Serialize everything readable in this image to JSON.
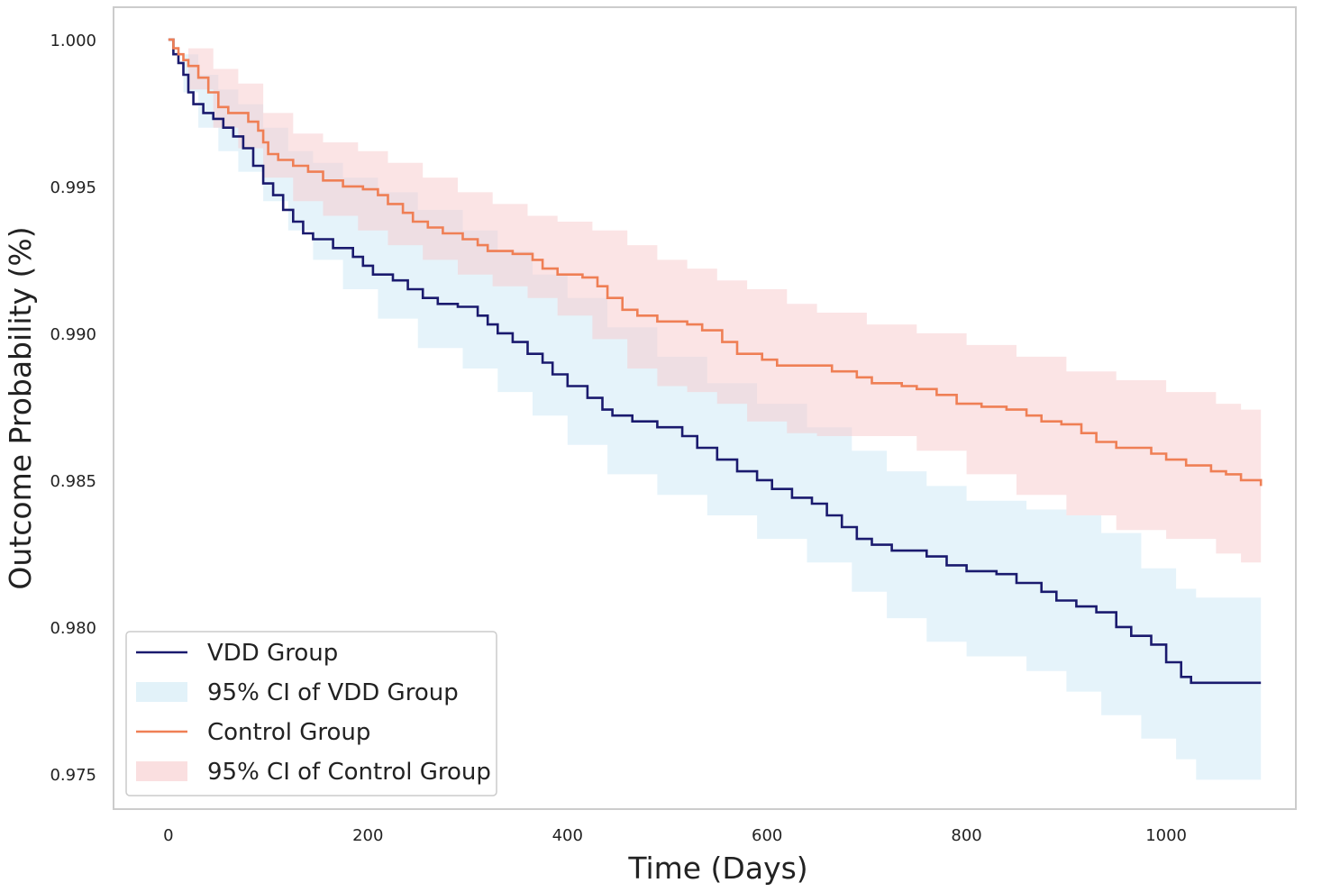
{
  "chart_data": {
    "type": "line",
    "title": "",
    "xlabel": "Time (Days)",
    "ylabel": "Outcome Probability (%)",
    "xlim": [
      -55,
      1130
    ],
    "ylim": [
      0.9738,
      1.0011
    ],
    "xticks": [
      0,
      200,
      400,
      600,
      800,
      1000
    ],
    "xtick_labels": [
      "0",
      "200",
      "400",
      "600",
      "800",
      "1000"
    ],
    "yticks": [
      1.0,
      0.995,
      0.99,
      0.985,
      0.98,
      0.975
    ],
    "ytick_labels": [
      "1.000",
      "0.995",
      "0.990",
      "0.985",
      "0.980",
      "0.975"
    ],
    "grid": false,
    "legend_location": "lower-left",
    "legend": [
      {
        "label": "VDD Group",
        "kind": "line",
        "color": "#1a1a6e"
      },
      {
        "label": "95% CI of VDD Group",
        "kind": "band",
        "color": "#cfe9f5"
      },
      {
        "label": "Control Group",
        "kind": "line",
        "color": "#ef7f55"
      },
      {
        "label": "95% CI of Control Group",
        "kind": "band",
        "color": "#f7c9cb"
      }
    ],
    "series": [
      {
        "name": "VDD Group",
        "color": "#1a1a6e",
        "ci_color": "#cfe9f5",
        "step": true,
        "points": [
          [
            0,
            1.0
          ],
          [
            5,
            0.9995
          ],
          [
            10,
            0.9992
          ],
          [
            15,
            0.9988
          ],
          [
            20,
            0.9982
          ],
          [
            25,
            0.9978
          ],
          [
            35,
            0.9975
          ],
          [
            45,
            0.9973
          ],
          [
            55,
            0.997
          ],
          [
            65,
            0.9967
          ],
          [
            75,
            0.9963
          ],
          [
            85,
            0.9957
          ],
          [
            95,
            0.9951
          ],
          [
            105,
            0.9947
          ],
          [
            115,
            0.9942
          ],
          [
            125,
            0.9938
          ],
          [
            135,
            0.9934
          ],
          [
            145,
            0.9932
          ],
          [
            165,
            0.9929
          ],
          [
            185,
            0.9926
          ],
          [
            195,
            0.9923
          ],
          [
            205,
            0.992
          ],
          [
            225,
            0.9918
          ],
          [
            240,
            0.9915
          ],
          [
            255,
            0.9912
          ],
          [
            270,
            0.991
          ],
          [
            290,
            0.9909
          ],
          [
            310,
            0.9906
          ],
          [
            320,
            0.9903
          ],
          [
            330,
            0.99
          ],
          [
            345,
            0.9897
          ],
          [
            360,
            0.9893
          ],
          [
            375,
            0.989
          ],
          [
            385,
            0.9886
          ],
          [
            400,
            0.9882
          ],
          [
            420,
            0.9878
          ],
          [
            435,
            0.9874
          ],
          [
            445,
            0.9872
          ],
          [
            465,
            0.987
          ],
          [
            490,
            0.9868
          ],
          [
            515,
            0.9865
          ],
          [
            530,
            0.9861
          ],
          [
            550,
            0.9857
          ],
          [
            570,
            0.9853
          ],
          [
            590,
            0.985
          ],
          [
            605,
            0.9847
          ],
          [
            625,
            0.9844
          ],
          [
            645,
            0.9842
          ],
          [
            660,
            0.9838
          ],
          [
            675,
            0.9834
          ],
          [
            690,
            0.983
          ],
          [
            705,
            0.9828
          ],
          [
            725,
            0.9826
          ],
          [
            760,
            0.9824
          ],
          [
            780,
            0.9821
          ],
          [
            800,
            0.9819
          ],
          [
            830,
            0.9818
          ],
          [
            850,
            0.9815
          ],
          [
            875,
            0.9812
          ],
          [
            890,
            0.9809
          ],
          [
            910,
            0.9807
          ],
          [
            930,
            0.9805
          ],
          [
            950,
            0.98
          ],
          [
            965,
            0.9797
          ],
          [
            985,
            0.9794
          ],
          [
            1000,
            0.9788
          ],
          [
            1015,
            0.9783
          ],
          [
            1025,
            0.9781
          ],
          [
            1095,
            0.9781
          ]
        ],
        "ci_lower": [
          [
            0,
            1.0
          ],
          [
            15,
            0.9982
          ],
          [
            30,
            0.997
          ],
          [
            50,
            0.9962
          ],
          [
            70,
            0.9955
          ],
          [
            95,
            0.9945
          ],
          [
            120,
            0.9935
          ],
          [
            145,
            0.9925
          ],
          [
            175,
            0.9915
          ],
          [
            210,
            0.9905
          ],
          [
            250,
            0.9895
          ],
          [
            295,
            0.9888
          ],
          [
            330,
            0.988
          ],
          [
            365,
            0.9872
          ],
          [
            400,
            0.9862
          ],
          [
            440,
            0.9852
          ],
          [
            490,
            0.9845
          ],
          [
            540,
            0.9838
          ],
          [
            590,
            0.983
          ],
          [
            640,
            0.9822
          ],
          [
            685,
            0.9812
          ],
          [
            720,
            0.9803
          ],
          [
            760,
            0.9795
          ],
          [
            800,
            0.979
          ],
          [
            860,
            0.9785
          ],
          [
            900,
            0.9778
          ],
          [
            935,
            0.977
          ],
          [
            975,
            0.9762
          ],
          [
            1010,
            0.9755
          ],
          [
            1030,
            0.9748
          ],
          [
            1095,
            0.9748
          ]
        ],
        "ci_upper": [
          [
            0,
            1.0
          ],
          [
            15,
            0.9995
          ],
          [
            30,
            0.9988
          ],
          [
            50,
            0.9983
          ],
          [
            70,
            0.9978
          ],
          [
            95,
            0.997
          ],
          [
            120,
            0.9962
          ],
          [
            145,
            0.9958
          ],
          [
            175,
            0.9953
          ],
          [
            210,
            0.9948
          ],
          [
            250,
            0.9942
          ],
          [
            295,
            0.9935
          ],
          [
            330,
            0.9928
          ],
          [
            365,
            0.992
          ],
          [
            400,
            0.9912
          ],
          [
            440,
            0.9902
          ],
          [
            490,
            0.9892
          ],
          [
            540,
            0.9883
          ],
          [
            590,
            0.9876
          ],
          [
            640,
            0.9868
          ],
          [
            685,
            0.986
          ],
          [
            720,
            0.9853
          ],
          [
            760,
            0.9848
          ],
          [
            800,
            0.9843
          ],
          [
            860,
            0.984
          ],
          [
            900,
            0.9838
          ],
          [
            935,
            0.9832
          ],
          [
            975,
            0.982
          ],
          [
            1010,
            0.9813
          ],
          [
            1030,
            0.981
          ],
          [
            1095,
            0.981
          ]
        ]
      },
      {
        "name": "Control Group",
        "color": "#ef7f55",
        "ci_color": "#f7c9cb",
        "step": true,
        "points": [
          [
            0,
            1.0
          ],
          [
            5,
            0.9997
          ],
          [
            10,
            0.9995
          ],
          [
            15,
            0.9993
          ],
          [
            20,
            0.9991
          ],
          [
            30,
            0.9987
          ],
          [
            40,
            0.9982
          ],
          [
            50,
            0.9977
          ],
          [
            60,
            0.9975
          ],
          [
            80,
            0.9972
          ],
          [
            90,
            0.9969
          ],
          [
            95,
            0.9965
          ],
          [
            100,
            0.9961
          ],
          [
            110,
            0.9959
          ],
          [
            125,
            0.9957
          ],
          [
            140,
            0.9955
          ],
          [
            155,
            0.9952
          ],
          [
            175,
            0.995
          ],
          [
            195,
            0.9949
          ],
          [
            210,
            0.9947
          ],
          [
            220,
            0.9944
          ],
          [
            235,
            0.9941
          ],
          [
            245,
            0.9938
          ],
          [
            260,
            0.9936
          ],
          [
            275,
            0.9934
          ],
          [
            295,
            0.9932
          ],
          [
            310,
            0.993
          ],
          [
            320,
            0.9928
          ],
          [
            345,
            0.9927
          ],
          [
            365,
            0.9925
          ],
          [
            375,
            0.9922
          ],
          [
            390,
            0.992
          ],
          [
            415,
            0.9919
          ],
          [
            430,
            0.9916
          ],
          [
            440,
            0.9912
          ],
          [
            455,
            0.9908
          ],
          [
            470,
            0.9906
          ],
          [
            490,
            0.9904
          ],
          [
            520,
            0.9903
          ],
          [
            535,
            0.9901
          ],
          [
            555,
            0.9897
          ],
          [
            570,
            0.9893
          ],
          [
            595,
            0.9891
          ],
          [
            610,
            0.9889
          ],
          [
            650,
            0.9889
          ],
          [
            665,
            0.9887
          ],
          [
            690,
            0.9885
          ],
          [
            705,
            0.9883
          ],
          [
            735,
            0.9882
          ],
          [
            750,
            0.9881
          ],
          [
            770,
            0.9879
          ],
          [
            790,
            0.9876
          ],
          [
            815,
            0.9875
          ],
          [
            840,
            0.9874
          ],
          [
            860,
            0.9872
          ],
          [
            875,
            0.987
          ],
          [
            895,
            0.9869
          ],
          [
            915,
            0.9866
          ],
          [
            930,
            0.9863
          ],
          [
            950,
            0.9861
          ],
          [
            985,
            0.9859
          ],
          [
            1000,
            0.9857
          ],
          [
            1020,
            0.9855
          ],
          [
            1045,
            0.9853
          ],
          [
            1060,
            0.9852
          ],
          [
            1075,
            0.985
          ],
          [
            1095,
            0.9848
          ]
        ],
        "ci_lower": [
          [
            0,
            1.0
          ],
          [
            20,
            0.9983
          ],
          [
            45,
            0.997
          ],
          [
            70,
            0.9963
          ],
          [
            95,
            0.9953
          ],
          [
            125,
            0.9945
          ],
          [
            155,
            0.994
          ],
          [
            190,
            0.9935
          ],
          [
            220,
            0.993
          ],
          [
            255,
            0.9925
          ],
          [
            290,
            0.992
          ],
          [
            325,
            0.9916
          ],
          [
            360,
            0.9912
          ],
          [
            390,
            0.9906
          ],
          [
            425,
            0.9898
          ],
          [
            460,
            0.9888
          ],
          [
            490,
            0.9882
          ],
          [
            520,
            0.988
          ],
          [
            550,
            0.9876
          ],
          [
            580,
            0.987
          ],
          [
            620,
            0.9866
          ],
          [
            650,
            0.9865
          ],
          [
            700,
            0.9865
          ],
          [
            750,
            0.986
          ],
          [
            800,
            0.9852
          ],
          [
            850,
            0.9845
          ],
          [
            900,
            0.9838
          ],
          [
            950,
            0.9833
          ],
          [
            1000,
            0.983
          ],
          [
            1050,
            0.9825
          ],
          [
            1075,
            0.9822
          ],
          [
            1095,
            0.9821
          ]
        ],
        "ci_upper": [
          [
            0,
            1.0
          ],
          [
            20,
            0.9997
          ],
          [
            45,
            0.999
          ],
          [
            70,
            0.9985
          ],
          [
            95,
            0.9975
          ],
          [
            125,
            0.9968
          ],
          [
            155,
            0.9965
          ],
          [
            190,
            0.9962
          ],
          [
            220,
            0.9958
          ],
          [
            255,
            0.9953
          ],
          [
            290,
            0.9948
          ],
          [
            325,
            0.9944
          ],
          [
            360,
            0.994
          ],
          [
            390,
            0.9938
          ],
          [
            425,
            0.9935
          ],
          [
            460,
            0.993
          ],
          [
            490,
            0.9925
          ],
          [
            520,
            0.9922
          ],
          [
            550,
            0.9918
          ],
          [
            580,
            0.9915
          ],
          [
            620,
            0.991
          ],
          [
            650,
            0.9907
          ],
          [
            700,
            0.9903
          ],
          [
            750,
            0.99
          ],
          [
            800,
            0.9896
          ],
          [
            850,
            0.9892
          ],
          [
            900,
            0.9887
          ],
          [
            950,
            0.9884
          ],
          [
            1000,
            0.988
          ],
          [
            1050,
            0.9876
          ],
          [
            1075,
            0.9874
          ],
          [
            1095,
            0.9872
          ]
        ]
      }
    ]
  }
}
